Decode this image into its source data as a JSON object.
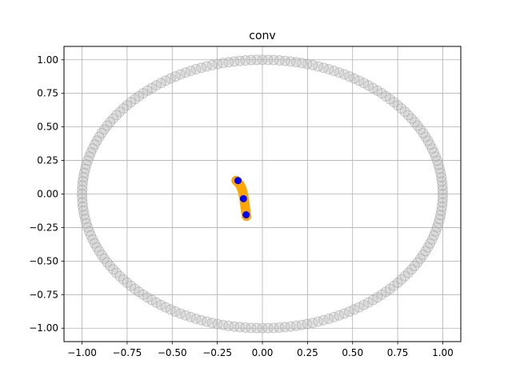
{
  "chart_data": {
    "type": "scatter",
    "title": "conv",
    "xlabel": "",
    "ylabel": "",
    "xlim": [
      -1.1,
      1.1
    ],
    "ylim": [
      -1.1,
      1.1
    ],
    "grid": true,
    "xticks": [
      -1.0,
      -0.75,
      -0.5,
      -0.25,
      0.0,
      0.25,
      0.5,
      0.75,
      1.0
    ],
    "yticks": [
      -1.0,
      -0.75,
      -0.5,
      -0.25,
      0.0,
      0.25,
      0.5,
      0.75,
      1.0
    ],
    "xtick_labels": [
      "−1.00",
      "−0.75",
      "−0.50",
      "−0.25",
      "0.00",
      "0.25",
      "0.50",
      "0.75",
      "1.00"
    ],
    "ytick_labels": [
      "−1.00",
      "−0.75",
      "−0.50",
      "−0.25",
      "0.00",
      "0.25",
      "0.50",
      "0.75",
      "1.00"
    ],
    "series": [
      {
        "marker": "circle-outline",
        "color": "#bfbfbf",
        "alpha": 0.5,
        "shape": "unit-circle",
        "center": [
          0,
          0
        ],
        "radius": 1.0,
        "count": 200
      },
      {
        "marker": "circle",
        "color": "#ffa500",
        "trace": [
          [
            -0.145,
            0.1
          ],
          [
            -0.135,
            0.085
          ],
          [
            -0.125,
            0.07
          ],
          [
            -0.118,
            0.05
          ],
          [
            -0.112,
            0.03
          ],
          [
            -0.108,
            0.01
          ],
          [
            -0.105,
            -0.01
          ],
          [
            -0.102,
            -0.03
          ],
          [
            -0.1,
            -0.05
          ],
          [
            -0.098,
            -0.07
          ],
          [
            -0.096,
            -0.09
          ],
          [
            -0.094,
            -0.11
          ],
          [
            -0.092,
            -0.13
          ],
          [
            -0.09,
            -0.15
          ],
          [
            -0.088,
            -0.165
          ]
        ]
      },
      {
        "marker": "circle",
        "color": "#0000ff",
        "points": [
          [
            -0.135,
            0.1
          ],
          [
            -0.105,
            -0.035
          ],
          [
            -0.09,
            -0.155
          ]
        ]
      }
    ]
  }
}
